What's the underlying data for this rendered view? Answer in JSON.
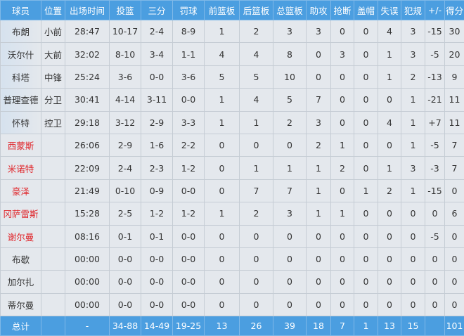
{
  "headers": [
    "球员",
    "位置",
    "出场时间",
    "投篮",
    "三分",
    "罚球",
    "前篮板",
    "后篮板",
    "总篮板",
    "助攻",
    "抢断",
    "盖帽",
    "失误",
    "犯规",
    "+/-",
    "得分"
  ],
  "colors": {
    "header_bg": "#4b9ee0",
    "cell_bg": "#e4e8ed",
    "bench_name": "#e0262b"
  },
  "players": [
    {
      "name": "布朗",
      "starter": true,
      "red": false,
      "cells": [
        "小前",
        "28:47",
        "10-17",
        "2-4",
        "8-9",
        "1",
        "2",
        "3",
        "3",
        "0",
        "0",
        "4",
        "3",
        "-15",
        "30"
      ]
    },
    {
      "name": "沃尔什",
      "starter": true,
      "red": false,
      "cells": [
        "大前",
        "32:02",
        "8-10",
        "3-4",
        "1-1",
        "4",
        "4",
        "8",
        "0",
        "3",
        "0",
        "1",
        "3",
        "-5",
        "20"
      ]
    },
    {
      "name": "科塔",
      "starter": true,
      "red": false,
      "cells": [
        "中锋",
        "25:24",
        "3-6",
        "0-0",
        "3-6",
        "5",
        "5",
        "10",
        "0",
        "0",
        "0",
        "1",
        "2",
        "-13",
        "9"
      ]
    },
    {
      "name": "普理查德",
      "starter": true,
      "red": false,
      "cells": [
        "分卫",
        "30:41",
        "4-14",
        "3-11",
        "0-0",
        "1",
        "4",
        "5",
        "7",
        "0",
        "0",
        "0",
        "1",
        "-21",
        "11"
      ]
    },
    {
      "name": "怀特",
      "starter": true,
      "red": false,
      "cells": [
        "控卫",
        "29:18",
        "3-12",
        "2-9",
        "3-3",
        "1",
        "1",
        "2",
        "3",
        "0",
        "0",
        "4",
        "1",
        "+7",
        "11"
      ]
    },
    {
      "name": "西蒙斯",
      "starter": false,
      "red": true,
      "cells": [
        "",
        "26:06",
        "2-9",
        "1-6",
        "2-2",
        "0",
        "0",
        "0",
        "2",
        "1",
        "0",
        "0",
        "1",
        "-5",
        "7"
      ]
    },
    {
      "name": "米诺特",
      "starter": false,
      "red": true,
      "cells": [
        "",
        "22:09",
        "2-4",
        "2-3",
        "1-2",
        "0",
        "1",
        "1",
        "1",
        "2",
        "0",
        "1",
        "3",
        "-3",
        "7"
      ]
    },
    {
      "name": "豪泽",
      "starter": false,
      "red": true,
      "cells": [
        "",
        "21:49",
        "0-10",
        "0-9",
        "0-0",
        "0",
        "7",
        "7",
        "1",
        "0",
        "1",
        "2",
        "1",
        "-15",
        "0"
      ]
    },
    {
      "name": "冈萨雷斯",
      "starter": false,
      "red": true,
      "cells": [
        "",
        "15:28",
        "2-5",
        "1-2",
        "1-2",
        "1",
        "2",
        "3",
        "1",
        "1",
        "0",
        "0",
        "0",
        "0",
        "6"
      ]
    },
    {
      "name": "谢尔曼",
      "starter": false,
      "red": true,
      "cells": [
        "",
        "08:16",
        "0-1",
        "0-1",
        "0-0",
        "0",
        "0",
        "0",
        "0",
        "0",
        "0",
        "0",
        "0",
        "-5",
        "0"
      ]
    },
    {
      "name": "布歇",
      "starter": false,
      "red": false,
      "cells": [
        "",
        "00:00",
        "0-0",
        "0-0",
        "0-0",
        "0",
        "0",
        "0",
        "0",
        "0",
        "0",
        "0",
        "0",
        "0",
        "0"
      ]
    },
    {
      "name": "加尔扎",
      "starter": false,
      "red": false,
      "cells": [
        "",
        "00:00",
        "0-0",
        "0-0",
        "0-0",
        "0",
        "0",
        "0",
        "0",
        "0",
        "0",
        "0",
        "0",
        "0",
        "0"
      ]
    },
    {
      "name": "蒂尔曼",
      "starter": false,
      "red": false,
      "cells": [
        "",
        "00:00",
        "0-0",
        "0-0",
        "0-0",
        "0",
        "0",
        "0",
        "0",
        "0",
        "0",
        "0",
        "0",
        "0",
        "0"
      ]
    }
  ],
  "totals": [
    "总计",
    "",
    "-",
    "34-88",
    "14-49",
    "19-25",
    "13",
    "26",
    "39",
    "18",
    "7",
    "1",
    "13",
    "15",
    "",
    "101"
  ]
}
